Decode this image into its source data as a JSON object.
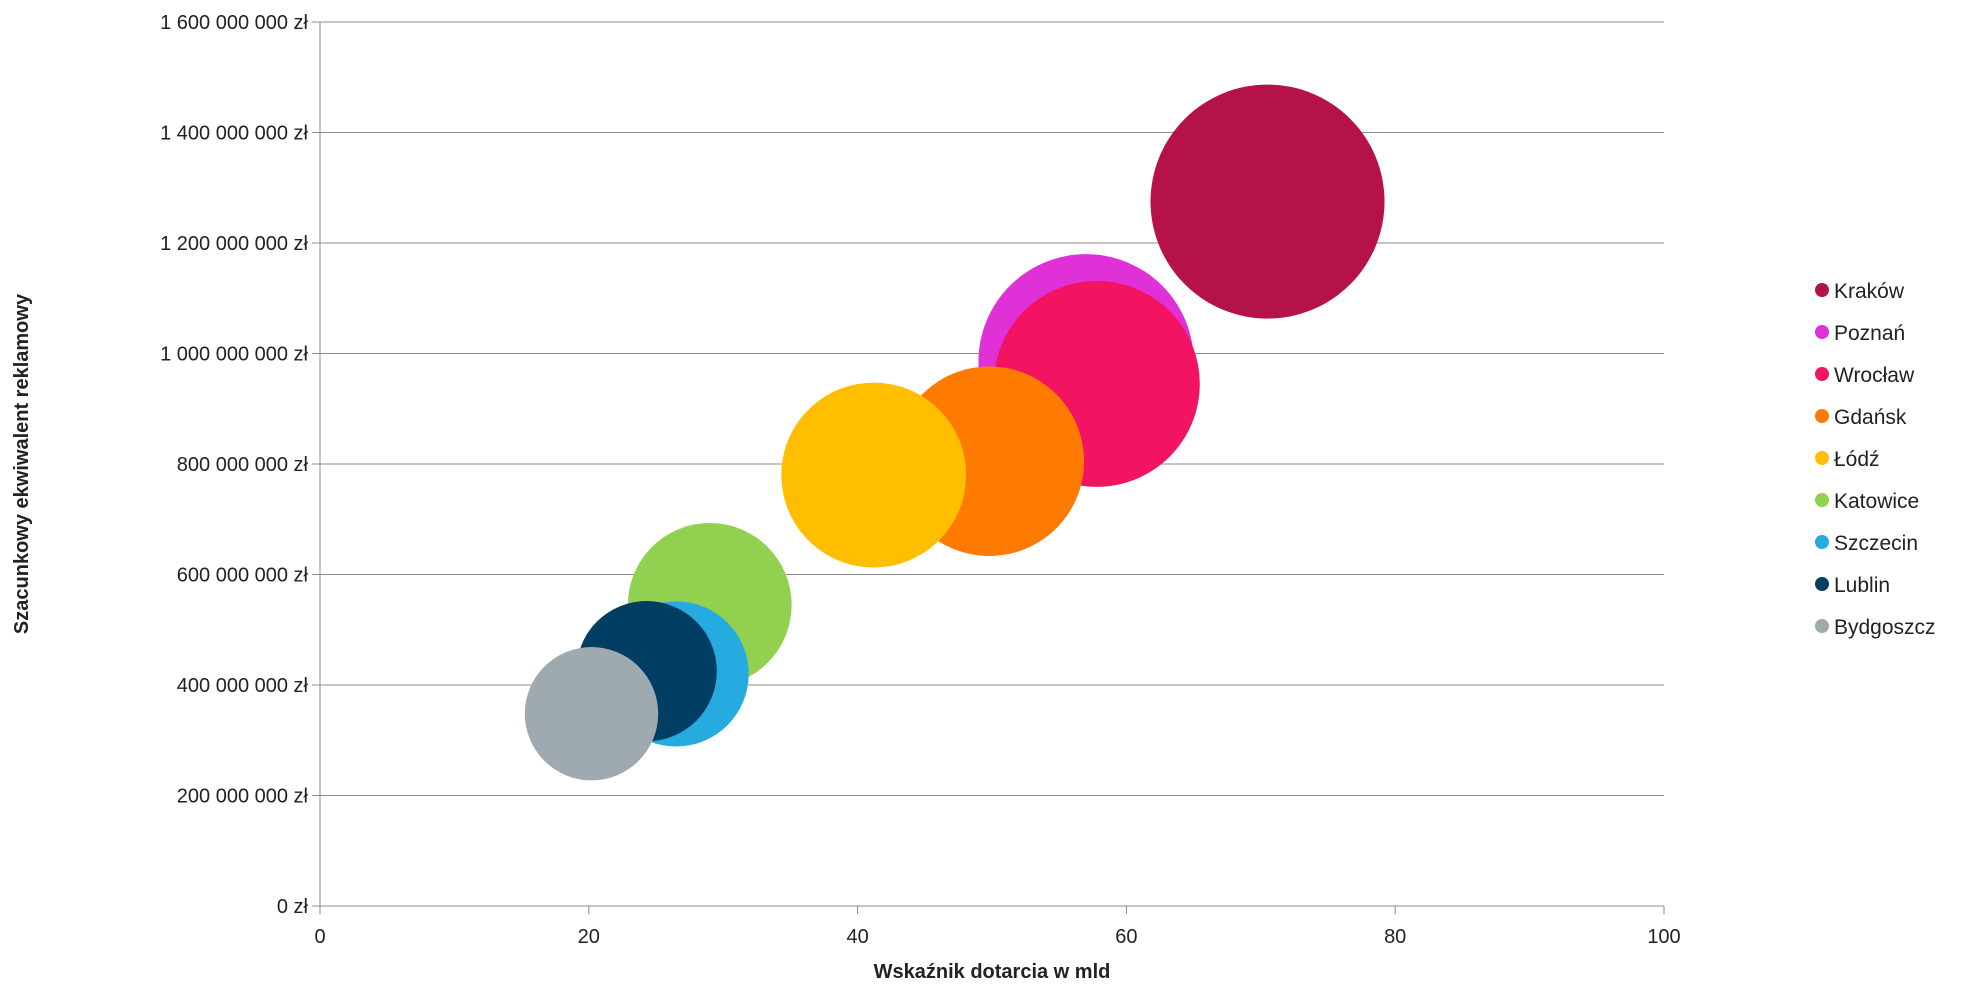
{
  "chart_data": {
    "type": "bubble",
    "title": "",
    "xlabel": "Wskaźnik dotarcia w mld",
    "ylabel": "Szacunkowy ekwiwalent reklamowy",
    "xlim": [
      0,
      100
    ],
    "ylim": [
      0,
      1600000000
    ],
    "x_ticks": [
      0,
      20,
      40,
      60,
      80,
      100
    ],
    "x_tick_labels": [
      "0",
      "20",
      "40",
      "60",
      "80",
      "100"
    ],
    "y_ticks": [
      0,
      200000000,
      400000000,
      600000000,
      800000000,
      1000000000,
      1200000000,
      1400000000,
      1600000000
    ],
    "y_tick_labels": [
      "0 zł",
      "200 000 000 zł",
      "400 000 000 zł",
      "600 000 000 zł",
      "800 000 000 zł",
      "1 000 000 000 zł",
      "1 200 000 000 zł",
      "1 400 000 000 zł",
      "1 600 000 000 zł"
    ],
    "grid": true,
    "legend_position": "right",
    "series": [
      {
        "name": "Kraków",
        "x": 70.5,
        "y": 1275000000,
        "size": 1.0,
        "color": "#B5124A"
      },
      {
        "name": "Poznań",
        "x": 57.0,
        "y": 985000000,
        "size": 0.92,
        "color": "#E030D8"
      },
      {
        "name": "Wrocław",
        "x": 57.8,
        "y": 945000000,
        "size": 0.88,
        "color": "#F21463"
      },
      {
        "name": "Gdańsk",
        "x": 49.8,
        "y": 805000000,
        "size": 0.81,
        "color": "#FF7A00"
      },
      {
        "name": "Łódź",
        "x": 41.2,
        "y": 780000000,
        "size": 0.79,
        "color": "#FFBF00"
      },
      {
        "name": "Katowice",
        "x": 29.0,
        "y": 545000000,
        "size": 0.7,
        "color": "#92D050"
      },
      {
        "name": "Szczecin",
        "x": 26.5,
        "y": 420000000,
        "size": 0.62,
        "color": "#25ABE0"
      },
      {
        "name": "Lublin",
        "x": 24.3,
        "y": 425000000,
        "size": 0.6,
        "color": "#003F63"
      },
      {
        "name": "Bydgoszcz",
        "x": 20.2,
        "y": 348000000,
        "size": 0.57,
        "color": "#9FAAB0"
      }
    ]
  }
}
